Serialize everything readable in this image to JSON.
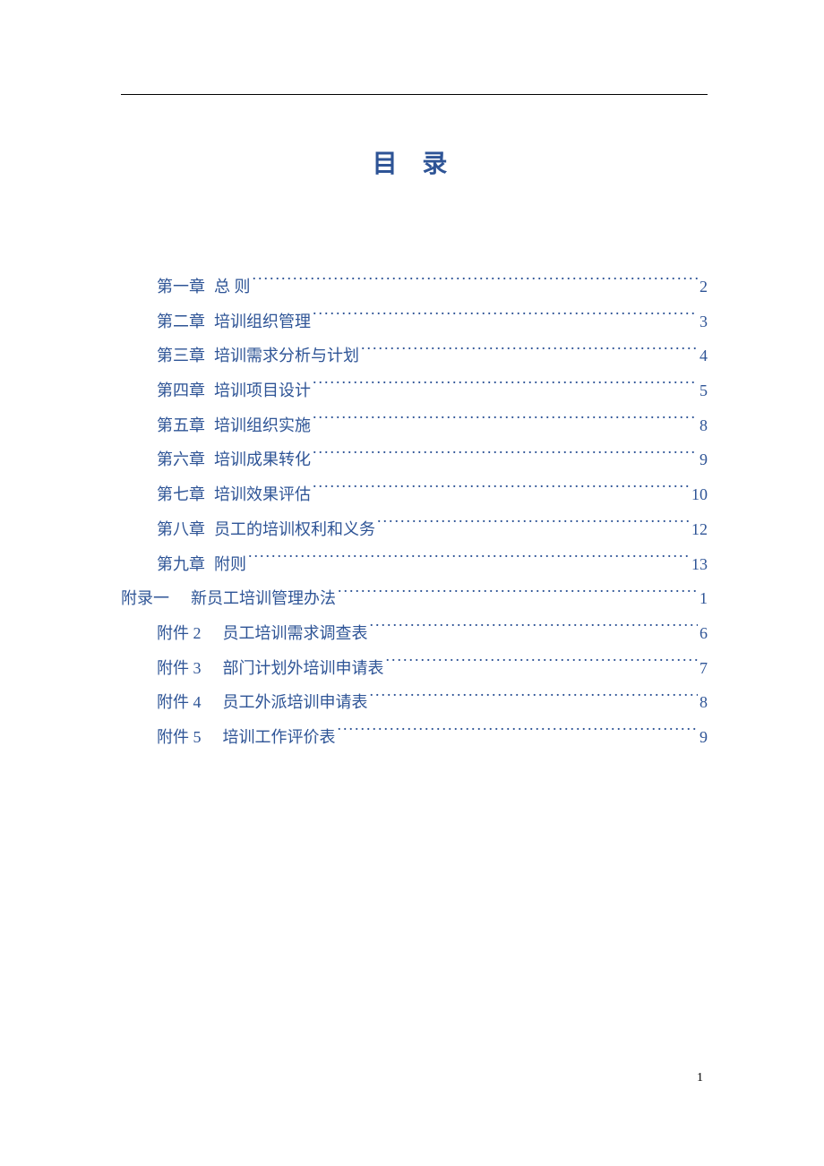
{
  "title": "目  录",
  "title_color": "#2e5496",
  "link_color": "#2e5496",
  "page_number": "1",
  "toc": [
    {
      "indent": 1,
      "label": "第一章",
      "text": "总  则",
      "page": "2"
    },
    {
      "indent": 1,
      "label": "第二章",
      "text": "培训组织管理",
      "page": "3"
    },
    {
      "indent": 1,
      "label": "第三章",
      "text": "培训需求分析与计划",
      "page": "4"
    },
    {
      "indent": 1,
      "label": "第四章",
      "text": "培训项目设计",
      "page": "5"
    },
    {
      "indent": 1,
      "label": "第五章",
      "text": "培训组织实施",
      "page": "8"
    },
    {
      "indent": 1,
      "label": "第六章",
      "text": "培训成果转化",
      "page": "9"
    },
    {
      "indent": 1,
      "label": "第七章",
      "text": "培训效果评估",
      "page": "10"
    },
    {
      "indent": 1,
      "label": "第八章",
      "text": "员工的培训权利和义务",
      "page": "12"
    },
    {
      "indent": 1,
      "label": "第九章",
      "text": "附则",
      "page": "13"
    },
    {
      "indent": 0,
      "label": "附录一",
      "text": "新员工培训管理办法",
      "page": "1",
      "wide_gap": true
    },
    {
      "indent": 1,
      "label": "附件 2",
      "text": "员工培训需求调查表",
      "page": "6",
      "wide_gap": true
    },
    {
      "indent": 1,
      "label": "附件 3",
      "text": "部门计划外培训申请表",
      "page": "7",
      "wide_gap": true
    },
    {
      "indent": 1,
      "label": "附件 4",
      "text": "员工外派培训申请表",
      "page": "8",
      "wide_gap": true
    },
    {
      "indent": 1,
      "label": "附件 5",
      "text": "培训工作评价表",
      "page": "9",
      "wide_gap": true
    }
  ]
}
